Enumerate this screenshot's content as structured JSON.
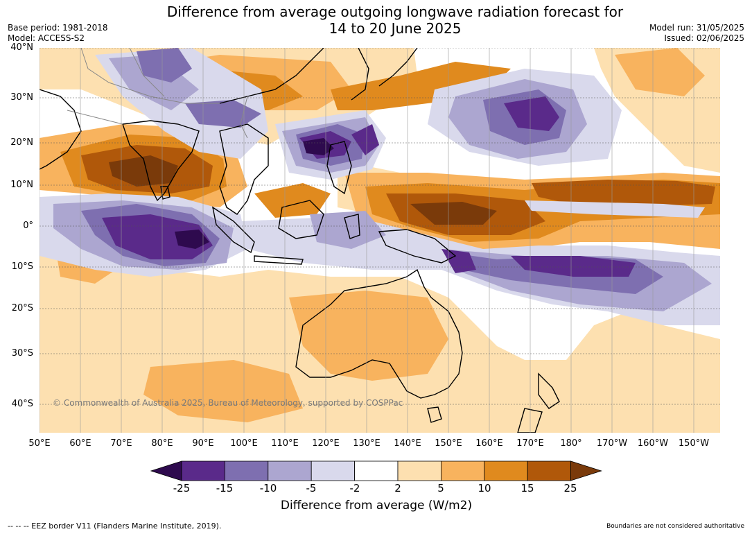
{
  "title": {
    "line1": "Difference from average outgoing longwave radiation forecast for",
    "line2": "14 to 20 June 2025"
  },
  "meta_left": {
    "base_period": "Base period: 1981-2018",
    "model": "Model: ACCESS-S2"
  },
  "meta_right": {
    "model_run": "Model run: 31/05/2025",
    "issued": "Issued: 02/06/2025"
  },
  "map": {
    "lat_labels": [
      "40°N",
      "30°N",
      "20°N",
      "10°N",
      "0°",
      "10°S",
      "20°S",
      "30°S",
      "40°S"
    ],
    "lon_labels": [
      "50°E",
      "60°E",
      "70°E",
      "80°E",
      "90°E",
      "100°E",
      "110°E",
      "120°E",
      "130°E",
      "140°E",
      "150°E",
      "160°E",
      "170°E",
      "180°",
      "170°W",
      "160°W",
      "150°W"
    ],
    "copyright": "© Commonwealth of Australia 2025, Bureau of Meteorology, supported by COSPPac"
  },
  "colorbar": {
    "levels": [
      "-25",
      "-15",
      "-10",
      "-5",
      "-2",
      "2",
      "5",
      "10",
      "15",
      "25"
    ],
    "colors": [
      "#2e0a4e",
      "#5a2a8a",
      "#7e6fb0",
      "#aca6d0",
      "#d9d9ec",
      "#ffffff",
      "#fde0b0",
      "#f8b35e",
      "#e08a1e",
      "#b0580a",
      "#7a3a0a"
    ],
    "label": "Difference from average (W/m2)"
  },
  "footer": {
    "eez": "--  --  -- EEZ border V11 (Flanders Marine Institute, 2019).",
    "authoritative": "Boundaries are not considered authoritative"
  }
}
